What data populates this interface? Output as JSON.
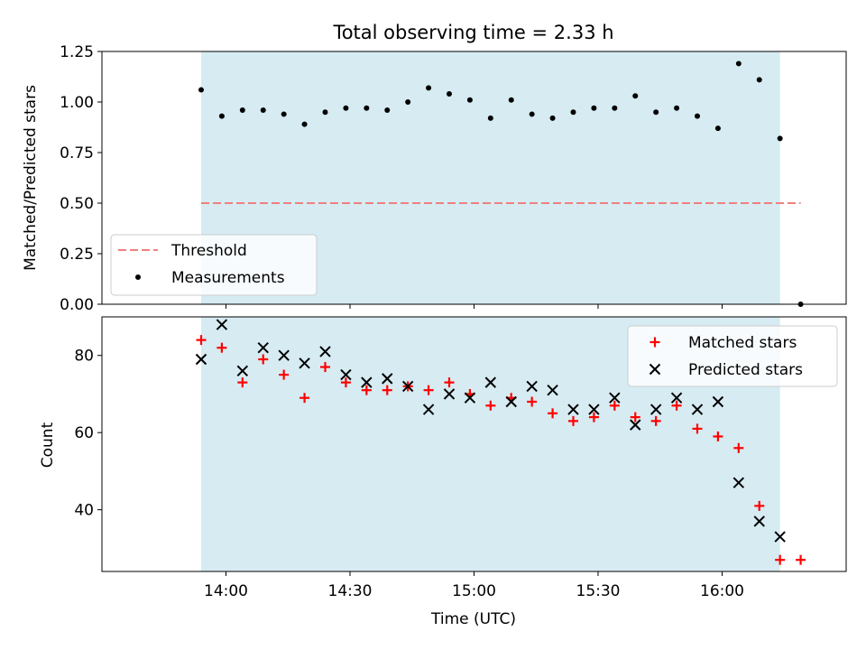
{
  "colors": {
    "band": "#add8e6",
    "threshold": "#f08080",
    "matched": "#ff0000",
    "predicted": "#000000",
    "measurement": "#000000"
  },
  "chart_data": [
    {
      "type": "scatter",
      "title": "Total observing time = 2.33 h",
      "xlabel": "",
      "ylabel": "Matched/Predicted stars",
      "ylim": [
        0,
        1.25
      ],
      "y_ticks": [
        "0.00",
        "0.25",
        "0.50",
        "0.75",
        "1.00",
        "1.25"
      ],
      "observing_window": [
        "13:54",
        "16:14"
      ],
      "legend_position": "lower-left",
      "series": [
        {
          "name": "Measurements",
          "marker": "dot",
          "x": [
            "13:54",
            "13:59",
            "14:04",
            "14:09",
            "14:14",
            "14:19",
            "14:24",
            "14:29",
            "14:34",
            "14:39",
            "14:44",
            "14:49",
            "14:54",
            "14:59",
            "15:04",
            "15:09",
            "15:14",
            "15:19",
            "15:24",
            "15:29",
            "15:34",
            "15:39",
            "15:44",
            "15:49",
            "15:54",
            "15:59",
            "16:04",
            "16:09",
            "16:14",
            "16:19"
          ],
          "values": [
            1.06,
            0.93,
            0.96,
            0.96,
            0.94,
            0.89,
            0.95,
            0.97,
            0.97,
            0.96,
            1.0,
            1.07,
            1.04,
            1.01,
            0.92,
            1.01,
            0.94,
            0.92,
            0.95,
            0.97,
            0.97,
            1.03,
            0.95,
            0.97,
            0.93,
            0.87,
            1.19,
            1.11,
            0.82,
            0.0
          ]
        },
        {
          "name": "Threshold",
          "marker": "dashed-line",
          "x": [
            "13:54",
            "16:19"
          ],
          "values": [
            0.5,
            0.5
          ]
        }
      ]
    },
    {
      "type": "scatter",
      "title": "",
      "xlabel": "Time (UTC)",
      "ylabel": "Count",
      "ylim": [
        24,
        90
      ],
      "y_ticks": [
        "40",
        "60",
        "80"
      ],
      "x_ticks": [
        "14:00",
        "14:30",
        "15:00",
        "15:30",
        "16:00"
      ],
      "observing_window": [
        "13:54",
        "16:14"
      ],
      "legend_position": "upper-right",
      "series": [
        {
          "name": "Matched stars",
          "marker": "plus",
          "x": [
            "13:54",
            "13:59",
            "14:04",
            "14:09",
            "14:14",
            "14:19",
            "14:24",
            "14:29",
            "14:34",
            "14:39",
            "14:44",
            "14:49",
            "14:54",
            "14:59",
            "15:04",
            "15:09",
            "15:14",
            "15:19",
            "15:24",
            "15:29",
            "15:34",
            "15:39",
            "15:44",
            "15:49",
            "15:54",
            "15:59",
            "16:04",
            "16:09",
            "16:14",
            "16:19"
          ],
          "values": [
            84,
            82,
            73,
            79,
            75,
            69,
            77,
            73,
            71,
            71,
            72,
            71,
            73,
            70,
            67,
            69,
            68,
            65,
            63,
            64,
            67,
            64,
            63,
            67,
            61,
            59,
            56,
            41,
            27,
            27
          ]
        },
        {
          "name": "Predicted stars",
          "marker": "x",
          "x": [
            "13:54",
            "13:59",
            "14:04",
            "14:09",
            "14:14",
            "14:19",
            "14:24",
            "14:29",
            "14:34",
            "14:39",
            "14:44",
            "14:49",
            "14:54",
            "14:59",
            "15:04",
            "15:09",
            "15:14",
            "15:19",
            "15:24",
            "15:29",
            "15:34",
            "15:39",
            "15:44",
            "15:49",
            "15:54",
            "15:59",
            "16:04",
            "16:09",
            "16:14"
          ],
          "values": [
            79,
            88,
            76,
            82,
            80,
            78,
            81,
            75,
            73,
            74,
            72,
            66,
            70,
            69,
            73,
            68,
            72,
            71,
            66,
            66,
            69,
            62,
            66,
            69,
            66,
            68,
            47,
            37,
            33
          ]
        }
      ]
    }
  ]
}
